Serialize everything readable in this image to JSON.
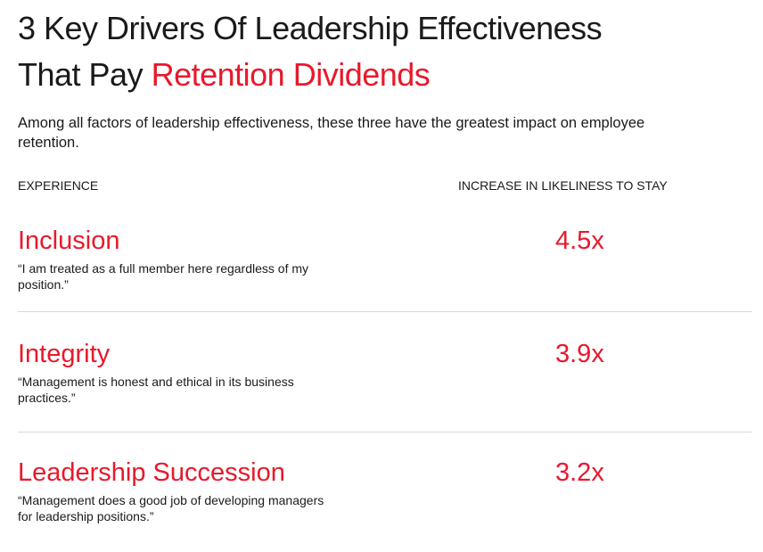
{
  "header": {
    "title_line1": "3 Key Drivers Of Leadership Effectiveness",
    "title_line2_plain": "That Pay",
    "title_line2_accent": "Retention Dividends",
    "intro": "Among all factors of leadership effectiveness, these three have the greatest impact on employee retention."
  },
  "columns": {
    "experience": "EXPERIENCE",
    "increase": "INCREASE IN LIKELINESS TO STAY"
  },
  "drivers": [
    {
      "name": "Inclusion",
      "quote": "“I am treated as a full member here regardless of my position.”",
      "value": "4.5x"
    },
    {
      "name": "Integrity",
      "quote": "“Management is honest and ethical in its business practices.”",
      "value": "3.9x"
    },
    {
      "name": "Leadership Succession",
      "quote": "“Management does a good job of developing managers for leadership positions.”",
      "value": "3.2x"
    }
  ],
  "colors": {
    "accent": "#e8192c",
    "text": "#1a1a1a",
    "divider": "#d9d9d9"
  }
}
